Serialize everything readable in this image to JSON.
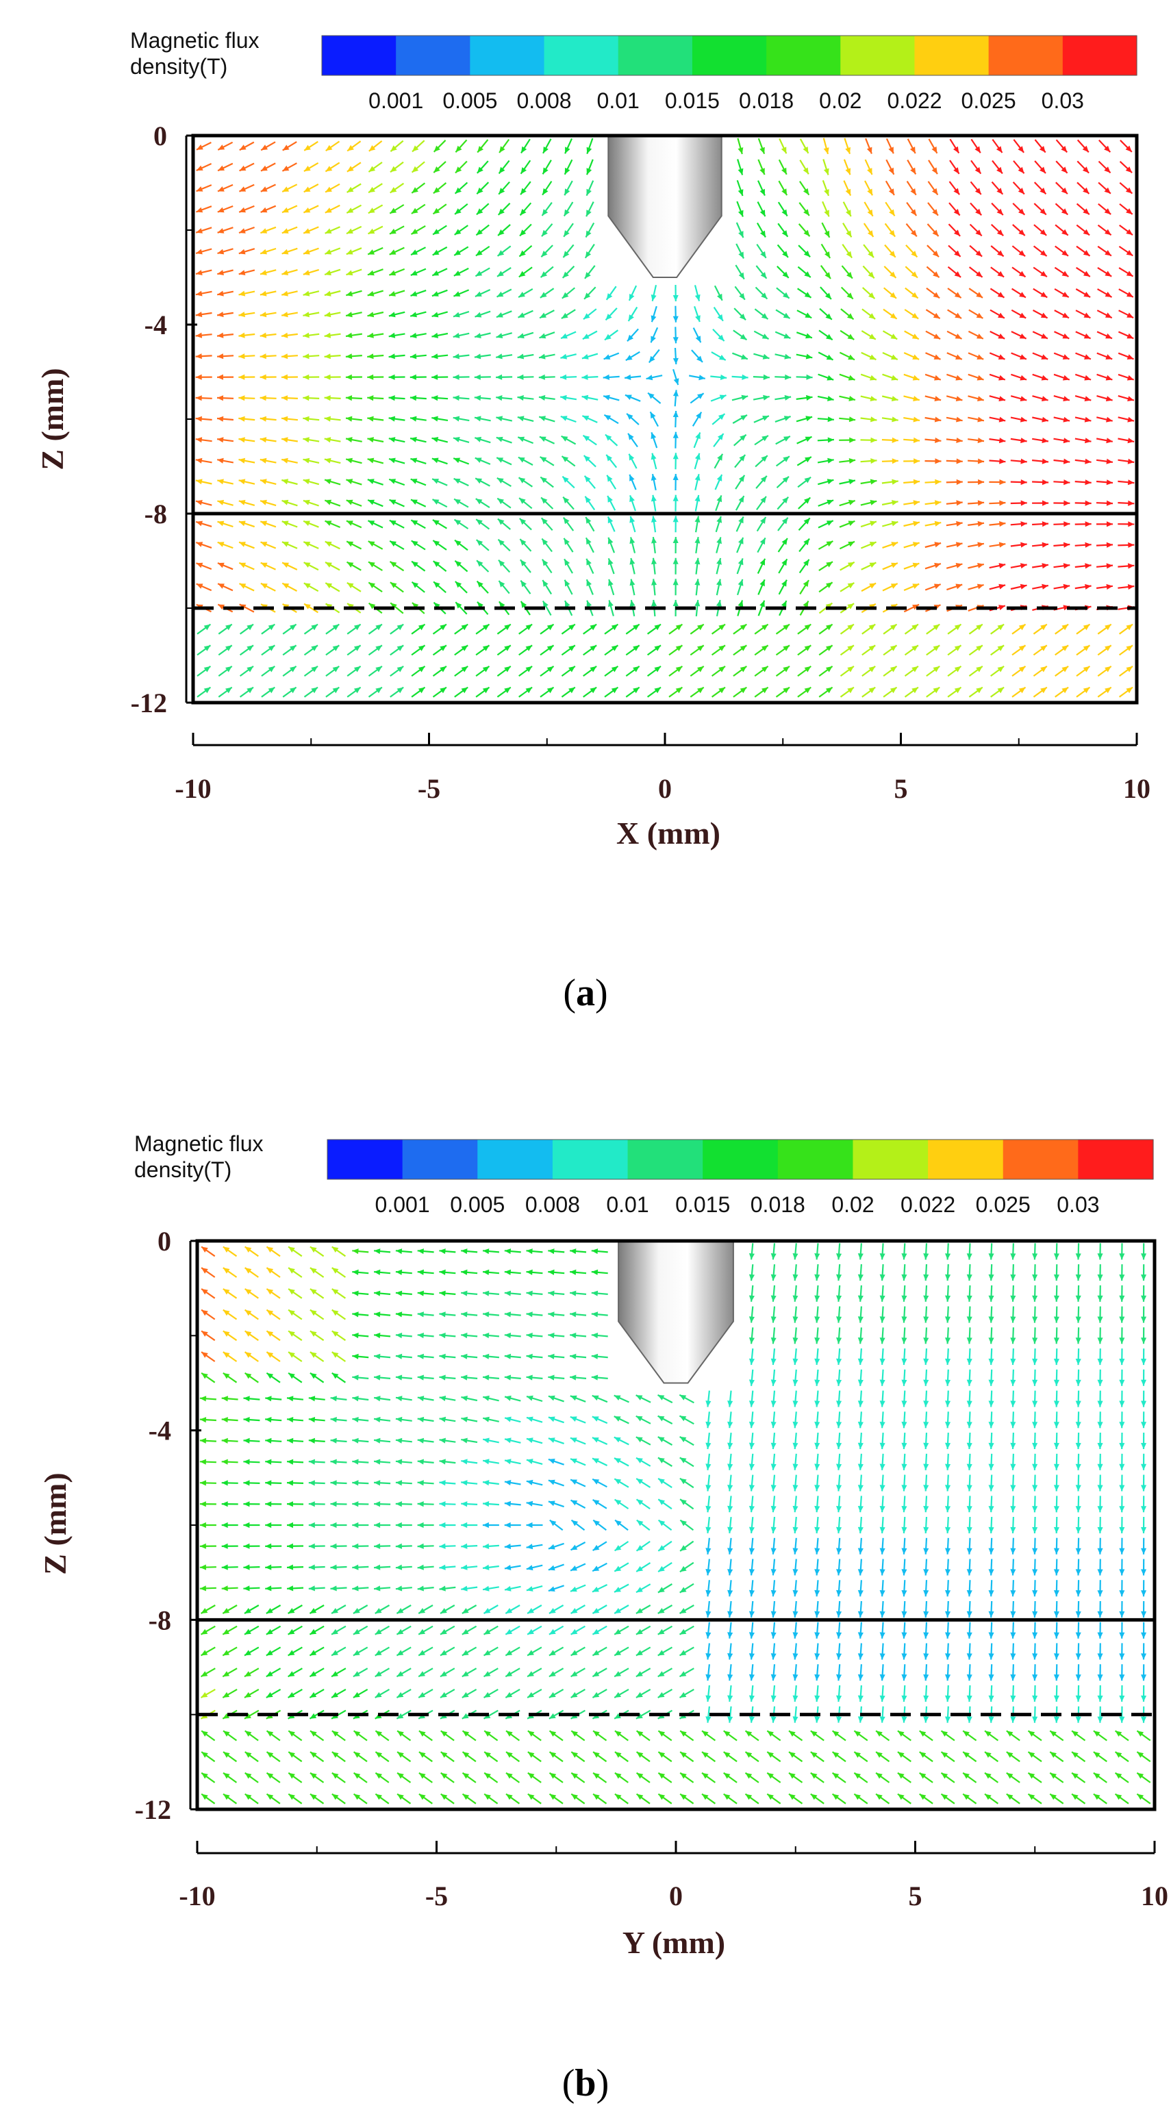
{
  "figure_panels": [
    {
      "id": "a",
      "label_open": "(",
      "label_letter": "a",
      "label_close": ")"
    },
    {
      "id": "b",
      "label_open": "(",
      "label_letter": "b",
      "label_close": ")"
    }
  ],
  "colors": {
    "frame": "#000000",
    "nozzle_light": "#f4f4f4",
    "nozzle_dark": "#8c8c8c",
    "axis_text": "#3a1a1a",
    "scale": [
      "#0a1cff",
      "#1e6cf0",
      "#13bcf0",
      "#22eac8",
      "#22e07a",
      "#12e030",
      "#36e21a",
      "#b4f018",
      "#ffcf10",
      "#ff6a1a",
      "#ff1c1c"
    ]
  },
  "chart_data": [
    {
      "type": "vector_field",
      "panel": "a",
      "title": "",
      "legend_title_line1": "Magnetic flux",
      "legend_title_line2": "density(T)",
      "colorbar_ticks": [
        "0.001",
        "0.005",
        "0.008",
        "0.01",
        "0.015",
        "0.018",
        "0.02",
        "0.022",
        "0.025",
        "0.03"
      ],
      "colorbar_levels": [
        0.001,
        0.005,
        0.008,
        0.01,
        0.015,
        0.018,
        0.02,
        0.022,
        0.025,
        0.03
      ],
      "xlabel": "X (mm)",
      "ylabel": "Z (mm)",
      "x_ticks": [
        "-10",
        "-5",
        "0",
        "5",
        "10"
      ],
      "x_tick_values": [
        -10,
        -5,
        0,
        5,
        10
      ],
      "y_ticks": [
        "0",
        "-4",
        "-8",
        "-12"
      ],
      "y_tick_values": [
        0,
        -4,
        -8,
        -12
      ],
      "y_minor_values": [
        -2,
        -6,
        -10
      ],
      "xlim": [
        -10,
        10
      ],
      "ylim": [
        -12,
        0
      ],
      "solid_line_z": -8,
      "dashed_line_z": -10,
      "nozzle": {
        "x_half_width": 1.2,
        "x_tip_half_width": 0.25,
        "z_taper_start": -1.7,
        "z_tip": -3
      },
      "field_regime": "xz"
    },
    {
      "type": "vector_field",
      "panel": "b",
      "title": "",
      "legend_title_line1": "Magnetic flux",
      "legend_title_line2": "density(T)",
      "colorbar_ticks": [
        "0.001",
        "0.005",
        "0.008",
        "0.01",
        "0.015",
        "0.018",
        "0.02",
        "0.022",
        "0.025",
        "0.03"
      ],
      "colorbar_levels": [
        0.001,
        0.005,
        0.008,
        0.01,
        0.015,
        0.018,
        0.02,
        0.022,
        0.025,
        0.03
      ],
      "xlabel": "Y (mm)",
      "ylabel": "Z (mm)",
      "x_ticks": [
        "-10",
        "-5",
        "0",
        "5",
        "10"
      ],
      "x_tick_values": [
        -10,
        -5,
        0,
        5,
        10
      ],
      "y_ticks": [
        "0",
        "-4",
        "-8",
        "-12"
      ],
      "y_tick_values": [
        0,
        -4,
        -8,
        -12
      ],
      "y_minor_values": [
        -2,
        -6,
        -10
      ],
      "xlim": [
        -10,
        10
      ],
      "ylim": [
        -12,
        0
      ],
      "solid_line_z": -8,
      "dashed_line_z": -10,
      "nozzle": {
        "x_half_width": 1.2,
        "x_tip_half_width": 0.25,
        "z_taper_start": -1.7,
        "z_tip": -3
      },
      "field_regime": "yz"
    }
  ]
}
